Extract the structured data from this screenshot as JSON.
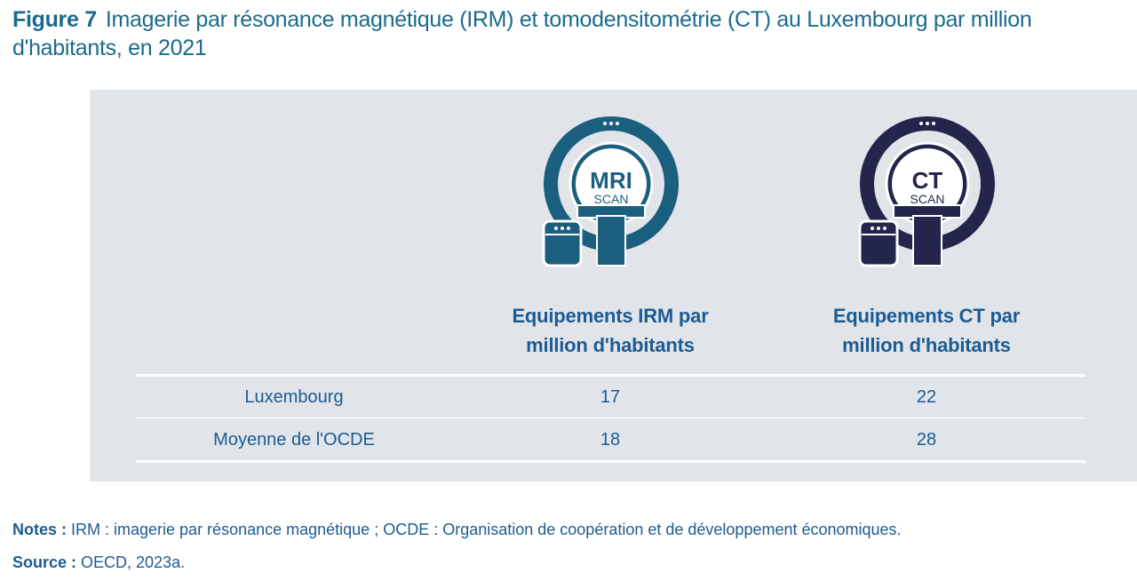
{
  "title": {
    "figure_label": "Figure 7",
    "text": "Imagerie par résonance magnétique (IRM) et tomodensitométrie (CT) au Luxembourg par million d'habitants, en 2021"
  },
  "icons": {
    "mri": {
      "line1": "MRI",
      "line2": "SCAN",
      "color": "#1b5f7e"
    },
    "ct": {
      "line1": "CT",
      "line2": "SCAN",
      "color": "#23264a"
    }
  },
  "chart_data": {
    "type": "table",
    "columns": [
      "",
      "Equipements IRM par million d'habitants",
      "Equipements CT par million d'habitants"
    ],
    "column_lines": [
      [
        "Equipements IRM par",
        "million d'habitants"
      ],
      [
        "Equipements CT par",
        "million d'habitants"
      ]
    ],
    "rows": [
      {
        "label": "Luxembourg",
        "values": [
          "17",
          "22"
        ]
      },
      {
        "label": "Moyenne de l'OCDE",
        "values": [
          "18",
          "28"
        ]
      }
    ]
  },
  "notes": {
    "notes_label": "Notes :",
    "notes_text": " IRM : imagerie par résonance magnétique ; OCDE : Organisation de coopération et de développement économiques.",
    "source_label": "Source :",
    "source_text": " OECD, 2023a."
  },
  "colors": {
    "title": "#1b6a8c",
    "text": "#1c5b93",
    "panel": "#e1e5ea"
  }
}
